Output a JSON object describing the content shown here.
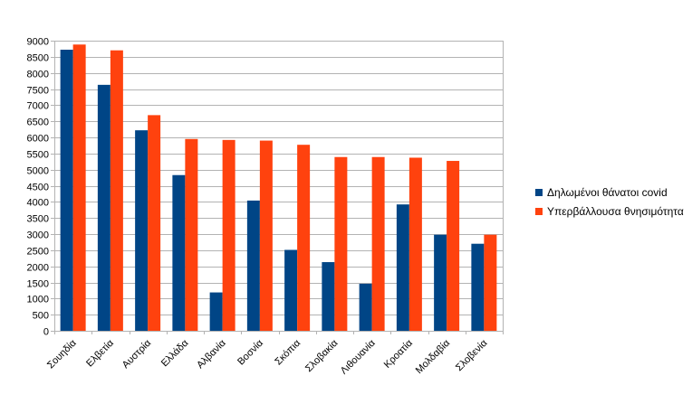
{
  "chart_data": {
    "type": "bar",
    "categories": [
      "Σουηδία",
      "Ελβετία",
      "Αυστρία",
      "Ελλάδα",
      "Αλβανία",
      "Βοσνία",
      "Σκόπια",
      "Σλοβακία",
      "Λιθουανία",
      "Κροατία",
      "Μολδαβία",
      "Σλοβενία"
    ],
    "series": [
      {
        "name": "Δηλωμένοι θάνατοι covid",
        "color": "#004586",
        "values": [
          8720,
          7630,
          6220,
          4830,
          1190,
          4040,
          2510,
          2130,
          1460,
          3920,
          2980,
          2700
        ]
      },
      {
        "name": "Υπερβάλλουσα θνησιμότητα",
        "color": "#ff420e",
        "values": [
          8880,
          8700,
          6690,
          5950,
          5920,
          5900,
          5770,
          5390,
          5390,
          5370,
          5270,
          2980
        ]
      }
    ],
    "ylim": [
      0,
      9000
    ],
    "ytick_step": 500,
    "grid": true,
    "legend": "right"
  }
}
